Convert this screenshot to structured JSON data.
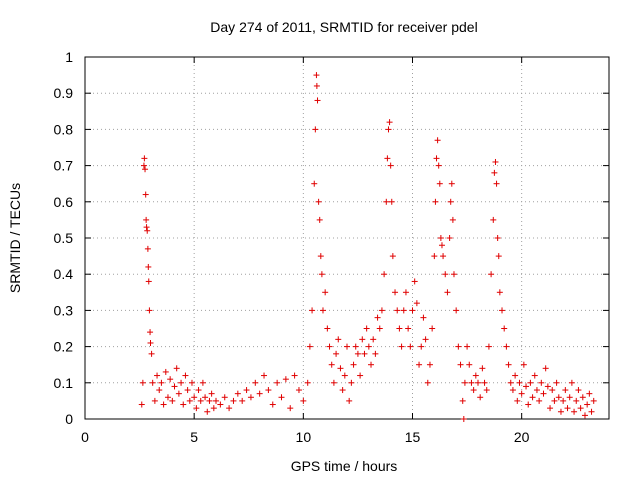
{
  "chart_data": {
    "type": "scatter",
    "title": "Day 274 of 2011, SRMTID for receiver pdel",
    "xlabel": "GPS time / hours",
    "ylabel": "SRMTID / TECUs",
    "xlim": [
      0,
      24
    ],
    "ylim": [
      0,
      1
    ],
    "x_ticks": [
      0,
      5,
      10,
      15,
      20
    ],
    "y_ticks": [
      0,
      0.1,
      0.2,
      0.3,
      0.4,
      0.5,
      0.6,
      0.7,
      0.8,
      0.9,
      1
    ],
    "x_tick_labels": [
      "0",
      "5",
      "10",
      "15",
      "20"
    ],
    "y_tick_labels": [
      "0",
      "0.1",
      "0.2",
      "0.3",
      "0.4",
      "0.5",
      "0.6",
      "0.7",
      "0.8",
      "0.9",
      "1"
    ],
    "grid": true,
    "marker": "+",
    "color": "#e00000",
    "series": [
      {
        "name": "SRMTID",
        "points": [
          [
            2.6,
            0.04
          ],
          [
            2.65,
            0.1
          ],
          [
            2.7,
            0.7
          ],
          [
            2.72,
            0.72
          ],
          [
            2.75,
            0.69
          ],
          [
            2.78,
            0.62
          ],
          [
            2.8,
            0.55
          ],
          [
            2.82,
            0.53
          ],
          [
            2.85,
            0.52
          ],
          [
            2.88,
            0.47
          ],
          [
            2.9,
            0.42
          ],
          [
            2.92,
            0.38
          ],
          [
            2.95,
            0.3
          ],
          [
            2.98,
            0.24
          ],
          [
            3.0,
            0.21
          ],
          [
            3.05,
            0.18
          ],
          [
            3.1,
            0.1
          ],
          [
            3.2,
            0.05
          ],
          [
            3.3,
            0.12
          ],
          [
            3.4,
            0.08
          ],
          [
            3.5,
            0.1
          ],
          [
            3.6,
            0.04
          ],
          [
            3.7,
            0.13
          ],
          [
            3.8,
            0.06
          ],
          [
            3.9,
            0.11
          ],
          [
            4.0,
            0.05
          ],
          [
            4.1,
            0.09
          ],
          [
            4.2,
            0.14
          ],
          [
            4.3,
            0.07
          ],
          [
            4.4,
            0.1
          ],
          [
            4.5,
            0.04
          ],
          [
            4.6,
            0.12
          ],
          [
            4.7,
            0.08
          ],
          [
            4.8,
            0.05
          ],
          [
            4.9,
            0.1
          ],
          [
            5.0,
            0.06
          ],
          [
            5.1,
            0.03
          ],
          [
            5.2,
            0.08
          ],
          [
            5.3,
            0.05
          ],
          [
            5.4,
            0.1
          ],
          [
            5.5,
            0.06
          ],
          [
            5.6,
            0.02
          ],
          [
            5.7,
            0.05
          ],
          [
            5.8,
            0.07
          ],
          [
            5.9,
            0.03
          ],
          [
            6.0,
            0.05
          ],
          [
            6.2,
            0.04
          ],
          [
            6.4,
            0.06
          ],
          [
            6.6,
            0.03
          ],
          [
            6.8,
            0.05
          ],
          [
            7.0,
            0.07
          ],
          [
            7.2,
            0.05
          ],
          [
            7.4,
            0.08
          ],
          [
            7.6,
            0.06
          ],
          [
            7.8,
            0.1
          ],
          [
            8.0,
            0.07
          ],
          [
            8.2,
            0.12
          ],
          [
            8.4,
            0.08
          ],
          [
            8.6,
            0.04
          ],
          [
            8.8,
            0.1
          ],
          [
            9.0,
            0.06
          ],
          [
            9.2,
            0.11
          ],
          [
            9.4,
            0.03
          ],
          [
            9.6,
            0.12
          ],
          [
            9.8,
            0.08
          ],
          [
            10.0,
            0.05
          ],
          [
            10.2,
            0.1
          ],
          [
            10.3,
            0.2
          ],
          [
            10.4,
            0.3
          ],
          [
            10.5,
            0.65
          ],
          [
            10.55,
            0.8
          ],
          [
            10.6,
            0.95
          ],
          [
            10.62,
            0.92
          ],
          [
            10.65,
            0.88
          ],
          [
            10.7,
            0.6
          ],
          [
            10.75,
            0.55
          ],
          [
            10.8,
            0.45
          ],
          [
            10.85,
            0.4
          ],
          [
            10.9,
            0.3
          ],
          [
            11.0,
            0.35
          ],
          [
            11.1,
            0.25
          ],
          [
            11.2,
            0.2
          ],
          [
            11.3,
            0.15
          ],
          [
            11.4,
            0.1
          ],
          [
            11.5,
            0.18
          ],
          [
            11.6,
            0.22
          ],
          [
            11.7,
            0.14
          ],
          [
            11.8,
            0.08
          ],
          [
            11.9,
            0.12
          ],
          [
            12.0,
            0.2
          ],
          [
            12.1,
            0.05
          ],
          [
            12.2,
            0.1
          ],
          [
            12.3,
            0.15
          ],
          [
            12.4,
            0.2
          ],
          [
            12.5,
            0.18
          ],
          [
            12.6,
            0.12
          ],
          [
            12.7,
            0.22
          ],
          [
            12.8,
            0.18
          ],
          [
            12.9,
            0.25
          ],
          [
            13.0,
            0.2
          ],
          [
            13.1,
            0.15
          ],
          [
            13.2,
            0.22
          ],
          [
            13.3,
            0.18
          ],
          [
            13.4,
            0.28
          ],
          [
            13.5,
            0.25
          ],
          [
            13.6,
            0.3
          ],
          [
            13.7,
            0.4
          ],
          [
            13.8,
            0.6
          ],
          [
            13.85,
            0.72
          ],
          [
            13.9,
            0.8
          ],
          [
            13.95,
            0.82
          ],
          [
            14.0,
            0.7
          ],
          [
            14.05,
            0.6
          ],
          [
            14.1,
            0.45
          ],
          [
            14.2,
            0.35
          ],
          [
            14.3,
            0.3
          ],
          [
            14.4,
            0.25
          ],
          [
            14.5,
            0.2
          ],
          [
            14.6,
            0.3
          ],
          [
            14.7,
            0.35
          ],
          [
            14.8,
            0.25
          ],
          [
            14.9,
            0.2
          ],
          [
            15.0,
            0.3
          ],
          [
            15.1,
            0.38
          ],
          [
            15.2,
            0.32
          ],
          [
            15.3,
            0.15
          ],
          [
            15.4,
            0.2
          ],
          [
            15.5,
            0.28
          ],
          [
            15.6,
            0.22
          ],
          [
            15.7,
            0.1
          ],
          [
            15.8,
            0.15
          ],
          [
            15.9,
            0.25
          ],
          [
            16.0,
            0.45
          ],
          [
            16.05,
            0.6
          ],
          [
            16.1,
            0.72
          ],
          [
            16.15,
            0.77
          ],
          [
            16.2,
            0.7
          ],
          [
            16.25,
            0.65
          ],
          [
            16.3,
            0.5
          ],
          [
            16.35,
            0.48
          ],
          [
            16.4,
            0.45
          ],
          [
            16.5,
            0.4
          ],
          [
            16.6,
            0.35
          ],
          [
            16.7,
            0.5
          ],
          [
            16.75,
            0.6
          ],
          [
            16.8,
            0.65
          ],
          [
            16.85,
            0.55
          ],
          [
            16.9,
            0.4
          ],
          [
            17.0,
            0.3
          ],
          [
            17.1,
            0.2
          ],
          [
            17.2,
            0.15
          ],
          [
            17.3,
            0.05
          ],
          [
            17.35,
            0.0
          ],
          [
            17.4,
            0.1
          ],
          [
            17.5,
            0.2
          ],
          [
            17.6,
            0.15
          ],
          [
            17.7,
            0.1
          ],
          [
            17.8,
            0.08
          ],
          [
            17.9,
            0.12
          ],
          [
            18.0,
            0.1
          ],
          [
            18.1,
            0.06
          ],
          [
            18.2,
            0.14
          ],
          [
            18.3,
            0.1
          ],
          [
            18.4,
            0.08
          ],
          [
            18.5,
            0.2
          ],
          [
            18.6,
            0.4
          ],
          [
            18.7,
            0.55
          ],
          [
            18.75,
            0.68
          ],
          [
            18.8,
            0.71
          ],
          [
            18.85,
            0.65
          ],
          [
            18.9,
            0.5
          ],
          [
            18.95,
            0.45
          ],
          [
            19.0,
            0.35
          ],
          [
            19.1,
            0.3
          ],
          [
            19.2,
            0.25
          ],
          [
            19.3,
            0.2
          ],
          [
            19.4,
            0.15
          ],
          [
            19.5,
            0.1
          ],
          [
            19.6,
            0.08
          ],
          [
            19.7,
            0.12
          ],
          [
            19.8,
            0.05
          ],
          [
            19.9,
            0.1
          ],
          [
            20.0,
            0.07
          ],
          [
            20.1,
            0.15
          ],
          [
            20.2,
            0.09
          ],
          [
            20.3,
            0.04
          ],
          [
            20.4,
            0.1
          ],
          [
            20.5,
            0.06
          ],
          [
            20.6,
            0.12
          ],
          [
            20.7,
            0.08
          ],
          [
            20.8,
            0.05
          ],
          [
            20.9,
            0.1
          ],
          [
            21.0,
            0.07
          ],
          [
            21.1,
            0.14
          ],
          [
            21.2,
            0.09
          ],
          [
            21.3,
            0.03
          ],
          [
            21.4,
            0.08
          ],
          [
            21.5,
            0.05
          ],
          [
            21.6,
            0.1
          ],
          [
            21.7,
            0.06
          ],
          [
            21.8,
            0.02
          ],
          [
            21.9,
            0.05
          ],
          [
            22.0,
            0.08
          ],
          [
            22.1,
            0.03
          ],
          [
            22.2,
            0.06
          ],
          [
            22.3,
            0.1
          ],
          [
            22.4,
            0.02
          ],
          [
            22.5,
            0.05
          ],
          [
            22.6,
            0.08
          ],
          [
            22.7,
            0.03
          ],
          [
            22.8,
            0.06
          ],
          [
            22.9,
            0.01
          ],
          [
            23.0,
            0.04
          ],
          [
            23.1,
            0.07
          ],
          [
            23.2,
            0.02
          ],
          [
            23.3,
            0.05
          ]
        ]
      }
    ]
  }
}
